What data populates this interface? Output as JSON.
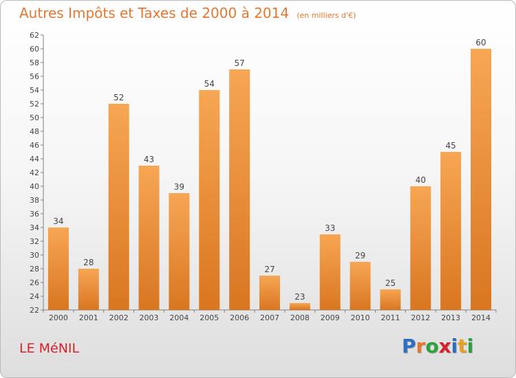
{
  "header": {
    "title": "Autres Impôts et Taxes de 2000 à 2014",
    "subtitle": "(en milliers d'€)"
  },
  "footer": {
    "town": "LE MéNIL",
    "brand_letters": [
      "P",
      "r",
      "o",
      "x",
      "i",
      "t",
      "i"
    ],
    "brand_colors": [
      "#2b6fc2",
      "#e8772e",
      "#2aa33c",
      "#d6202a",
      "#2b6fc2",
      "#e8a020",
      "#2aa33c"
    ]
  },
  "colors": {
    "bar_top": "#f7a654",
    "bar_bottom": "#d97620",
    "axis": "#808080",
    "grid": "#cfcfcf"
  },
  "chart_data": {
    "type": "bar",
    "categories": [
      "2000",
      "2001",
      "2002",
      "2003",
      "2004",
      "2005",
      "2006",
      "2007",
      "2008",
      "2009",
      "2010",
      "2011",
      "2012",
      "2013",
      "2014"
    ],
    "values": [
      34,
      28,
      52,
      43,
      39,
      54,
      57,
      27,
      23,
      33,
      29,
      25,
      40,
      45,
      60
    ],
    "ylim": [
      22,
      62
    ],
    "yticks": [
      22,
      24,
      26,
      28,
      30,
      32,
      34,
      36,
      38,
      40,
      42,
      44,
      46,
      48,
      50,
      52,
      54,
      56,
      58,
      60,
      62
    ],
    "title": "Autres Impôts et Taxes de 2000 à 2014",
    "xlabel": "",
    "ylabel": "",
    "grid": false,
    "data_labels": true
  }
}
